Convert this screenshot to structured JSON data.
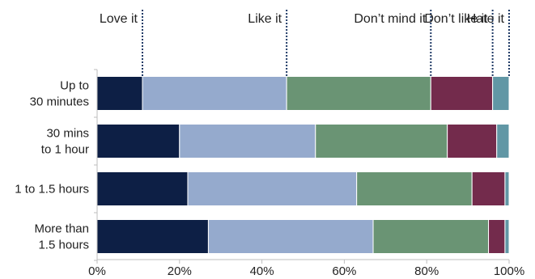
{
  "chart_data": {
    "type": "bar",
    "orientation": "horizontal",
    "stacked": true,
    "categories": [
      [
        "Up to",
        "30 minutes"
      ],
      [
        "30 mins",
        "to 1 hour"
      ],
      [
        "1 to 1.5 hours"
      ],
      [
        "More than",
        "1.5 hours"
      ]
    ],
    "series": [
      {
        "name": "Love it",
        "color": "#0d1f45",
        "values": [
          11,
          20,
          22,
          27
        ]
      },
      {
        "name": "Like it",
        "color": "#95aacd",
        "values": [
          35,
          33,
          41,
          40
        ]
      },
      {
        "name": "Don’t mind it",
        "color": "#6a9474",
        "values": [
          35,
          32,
          28,
          28
        ]
      },
      {
        "name": "Don’t like it",
        "color": "#732b4c",
        "values": [
          15,
          12,
          8,
          4
        ]
      },
      {
        "name": "Hate it",
        "color": "#6197a5",
        "values": [
          4,
          3,
          1,
          1
        ]
      }
    ],
    "legend": {
      "placement": "top",
      "style": "labels with dotted leader lines to cumulative position on first bar",
      "leader_color": "#1f3a66"
    },
    "xlim": [
      0,
      100
    ],
    "xticks": [
      "0%",
      "20%",
      "40%",
      "60%",
      "80%",
      "100%"
    ],
    "xlabel": "",
    "ylabel": "",
    "title": "",
    "grid": false
  }
}
